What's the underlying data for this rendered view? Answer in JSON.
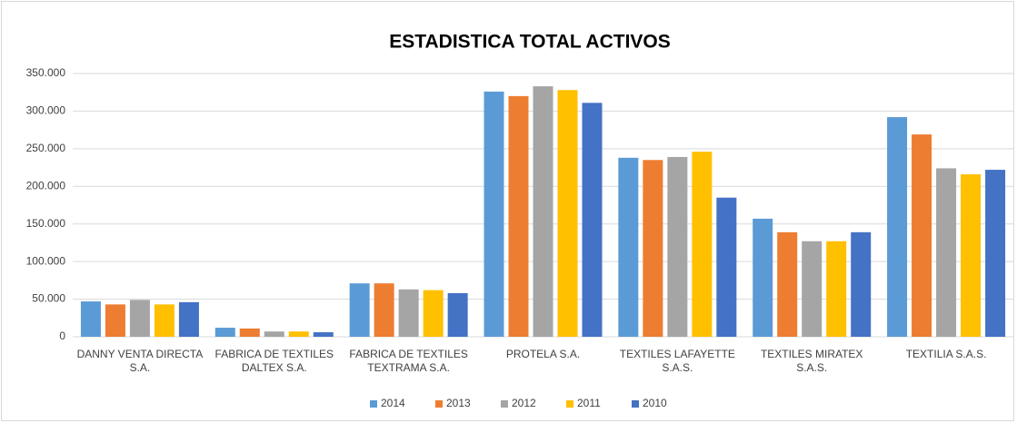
{
  "chart_data": {
    "type": "bar",
    "title": "ESTADISTICA TOTAL ACTIVOS",
    "categories": [
      "DANNY VENTA DIRECTA S.A.",
      "FABRICA DE TEXTILES DALTEX S.A.",
      "FABRICA DE TEXTILES TEXTRAMA S.A.",
      "PROTELA S.A.",
      "TEXTILES LAFAYETTE S.A.S.",
      "TEXTILES MIRATEX S.A.S.",
      "TEXTILIA S.A.S."
    ],
    "series": [
      {
        "name": "2014",
        "color": "#5b9bd5",
        "values": [
          47000,
          12000,
          71000,
          326000,
          238000,
          157000,
          292000
        ]
      },
      {
        "name": "2013",
        "color": "#ed7d31",
        "values": [
          43000,
          11000,
          71000,
          320000,
          235000,
          139000,
          269000
        ]
      },
      {
        "name": "2012",
        "color": "#a5a5a5",
        "values": [
          49000,
          7000,
          63000,
          333000,
          239000,
          127000,
          224000
        ]
      },
      {
        "name": "2011",
        "color": "#ffc000",
        "values": [
          43000,
          7000,
          62000,
          328000,
          246000,
          127000,
          216000
        ]
      },
      {
        "name": "2010",
        "color": "#4472c4",
        "values": [
          46000,
          6000,
          58000,
          311000,
          185000,
          139000,
          222000
        ]
      }
    ],
    "ylim": [
      0,
      350000
    ],
    "yticks": [
      0,
      {
        "value": 50000,
        "label": "50.000"
      },
      {
        "value": 100000,
        "label": "100.000"
      },
      {
        "value": 150000,
        "label": "150.000"
      },
      {
        "value": 200000,
        "label": "200.000"
      },
      {
        "value": 250000,
        "label": "250.000"
      },
      {
        "value": 300000,
        "label": "300.000"
      },
      {
        "value": 350000,
        "label": "350.000"
      }
    ],
    "grid": true,
    "legend": "bottom"
  }
}
